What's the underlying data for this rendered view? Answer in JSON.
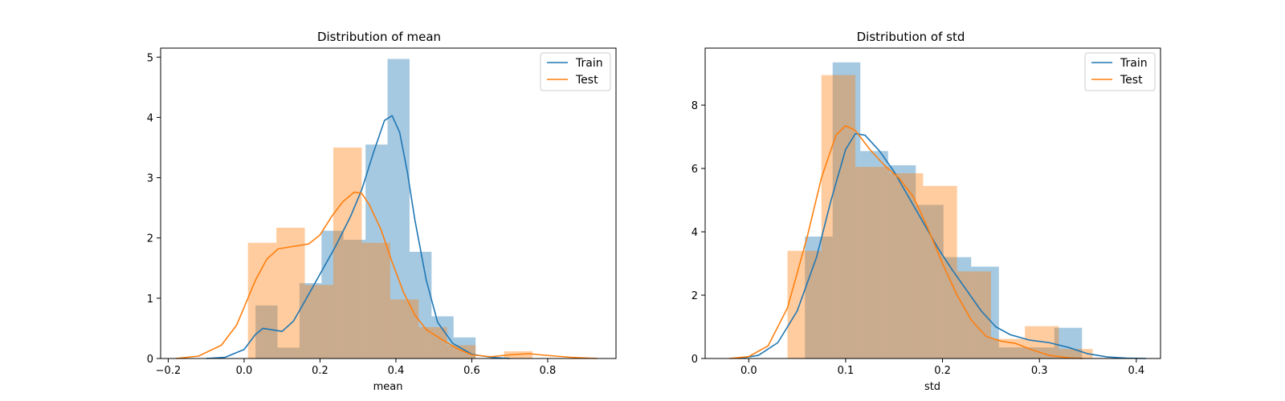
{
  "colors": {
    "train": "#1f77b4",
    "test": "#ff7f0e"
  },
  "chart_data": [
    {
      "type": "histogram",
      "title": "Distribution of mean",
      "xlabel": "mean",
      "ylabel": "",
      "xlim": [
        -0.22,
        0.98
      ],
      "ylim": [
        0,
        5.15
      ],
      "xticks": [
        -0.2,
        0.0,
        0.2,
        0.4,
        0.6,
        0.8
      ],
      "xtick_labels": [
        "−0.2",
        "0.0",
        "0.2",
        "0.4",
        "0.6",
        "0.8"
      ],
      "yticks": [
        0,
        1,
        2,
        3,
        4,
        5
      ],
      "ytick_labels": [
        "0",
        "1",
        "2",
        "3",
        "4",
        "5"
      ],
      "legend": {
        "position": "top-right",
        "entries": [
          "Train",
          "Test"
        ]
      },
      "series": [
        {
          "name": "Train",
          "color": "#1f77b4",
          "bins": [
            {
              "x0": 0.03,
              "x1": 0.088,
              "y": 0.88
            },
            {
              "x0": 0.088,
              "x1": 0.146,
              "y": 0.18
            },
            {
              "x0": 0.146,
              "x1": 0.204,
              "y": 1.25
            },
            {
              "x0": 0.204,
              "x1": 0.262,
              "y": 2.12
            },
            {
              "x0": 0.262,
              "x1": 0.32,
              "y": 1.97
            },
            {
              "x0": 0.32,
              "x1": 0.378,
              "y": 3.55
            },
            {
              "x0": 0.378,
              "x1": 0.436,
              "y": 4.97
            },
            {
              "x0": 0.436,
              "x1": 0.494,
              "y": 1.77
            },
            {
              "x0": 0.494,
              "x1": 0.552,
              "y": 0.7
            },
            {
              "x0": 0.552,
              "x1": 0.61,
              "y": 0.35
            }
          ],
          "kde": [
            [
              -0.1,
              0.0
            ],
            [
              -0.05,
              0.02
            ],
            [
              0.0,
              0.15
            ],
            [
              0.03,
              0.4
            ],
            [
              0.05,
              0.5
            ],
            [
              0.08,
              0.47
            ],
            [
              0.1,
              0.45
            ],
            [
              0.13,
              0.62
            ],
            [
              0.16,
              0.95
            ],
            [
              0.2,
              1.4
            ],
            [
              0.24,
              1.85
            ],
            [
              0.28,
              2.35
            ],
            [
              0.31,
              2.8
            ],
            [
              0.34,
              3.4
            ],
            [
              0.37,
              3.95
            ],
            [
              0.39,
              4.03
            ],
            [
              0.41,
              3.75
            ],
            [
              0.43,
              3.1
            ],
            [
              0.45,
              2.3
            ],
            [
              0.48,
              1.3
            ],
            [
              0.51,
              0.6
            ],
            [
              0.55,
              0.25
            ],
            [
              0.6,
              0.07
            ],
            [
              0.65,
              0.02
            ],
            [
              0.7,
              0.0
            ]
          ]
        },
        {
          "name": "Test",
          "color": "#ff7f0e",
          "bins": [
            {
              "x0": 0.01,
              "x1": 0.085,
              "y": 1.92
            },
            {
              "x0": 0.085,
              "x1": 0.16,
              "y": 2.17
            },
            {
              "x0": 0.16,
              "x1": 0.235,
              "y": 1.22
            },
            {
              "x0": 0.235,
              "x1": 0.31,
              "y": 3.5
            },
            {
              "x0": 0.31,
              "x1": 0.385,
              "y": 1.92
            },
            {
              "x0": 0.385,
              "x1": 0.46,
              "y": 0.98
            },
            {
              "x0": 0.46,
              "x1": 0.535,
              "y": 0.52
            },
            {
              "x0": 0.535,
              "x1": 0.61,
              "y": 0.22
            },
            {
              "x0": 0.61,
              "x1": 0.685,
              "y": 0.0
            },
            {
              "x0": 0.685,
              "x1": 0.76,
              "y": 0.12
            }
          ],
          "kde": [
            [
              -0.18,
              0.0
            ],
            [
              -0.12,
              0.04
            ],
            [
              -0.06,
              0.22
            ],
            [
              -0.02,
              0.55
            ],
            [
              0.0,
              0.85
            ],
            [
              0.03,
              1.3
            ],
            [
              0.06,
              1.65
            ],
            [
              0.09,
              1.82
            ],
            [
              0.13,
              1.86
            ],
            [
              0.17,
              1.9
            ],
            [
              0.2,
              2.05
            ],
            [
              0.23,
              2.35
            ],
            [
              0.26,
              2.6
            ],
            [
              0.29,
              2.76
            ],
            [
              0.31,
              2.74
            ],
            [
              0.33,
              2.55
            ],
            [
              0.36,
              2.15
            ],
            [
              0.39,
              1.6
            ],
            [
              0.42,
              1.1
            ],
            [
              0.45,
              0.72
            ],
            [
              0.48,
              0.48
            ],
            [
              0.52,
              0.32
            ],
            [
              0.56,
              0.17
            ],
            [
              0.6,
              0.06
            ],
            [
              0.65,
              0.03
            ],
            [
              0.7,
              0.06
            ],
            [
              0.75,
              0.08
            ],
            [
              0.8,
              0.05
            ],
            [
              0.86,
              0.02
            ],
            [
              0.93,
              0.0
            ]
          ]
        }
      ]
    },
    {
      "type": "histogram",
      "title": "Distribution of std",
      "xlabel": "std",
      "ylabel": "",
      "xlim": [
        -0.045,
        0.425
      ],
      "ylim": [
        0,
        9.8
      ],
      "xticks": [
        0.0,
        0.1,
        0.2,
        0.3,
        0.4
      ],
      "xtick_labels": [
        "0.0",
        "0.1",
        "0.2",
        "0.3",
        "0.4"
      ],
      "yticks": [
        0,
        2,
        4,
        6,
        8
      ],
      "ytick_labels": [
        "0",
        "2",
        "4",
        "6",
        "8"
      ],
      "legend": {
        "position": "top-right",
        "entries": [
          "Train",
          "Test"
        ]
      },
      "series": [
        {
          "name": "Train",
          "color": "#1f77b4",
          "bins": [
            {
              "x0": 0.058,
              "x1": 0.0866,
              "y": 3.85
            },
            {
              "x0": 0.0866,
              "x1": 0.1152,
              "y": 9.35
            },
            {
              "x0": 0.1152,
              "x1": 0.1438,
              "y": 6.55
            },
            {
              "x0": 0.1438,
              "x1": 0.1724,
              "y": 6.1
            },
            {
              "x0": 0.1724,
              "x1": 0.201,
              "y": 4.85
            },
            {
              "x0": 0.201,
              "x1": 0.2296,
              "y": 3.2
            },
            {
              "x0": 0.2296,
              "x1": 0.2582,
              "y": 2.9
            },
            {
              "x0": 0.2582,
              "x1": 0.2868,
              "y": 0.35
            },
            {
              "x0": 0.2868,
              "x1": 0.3154,
              "y": 0.35
            },
            {
              "x0": 0.3154,
              "x1": 0.344,
              "y": 0.97
            }
          ],
          "kde": [
            [
              -0.01,
              0.0
            ],
            [
              0.01,
              0.1
            ],
            [
              0.03,
              0.5
            ],
            [
              0.05,
              1.5
            ],
            [
              0.07,
              3.2
            ],
            [
              0.085,
              5.0
            ],
            [
              0.1,
              6.6
            ],
            [
              0.11,
              7.1
            ],
            [
              0.12,
              7.05
            ],
            [
              0.135,
              6.55
            ],
            [
              0.15,
              5.9
            ],
            [
              0.165,
              5.1
            ],
            [
              0.18,
              4.3
            ],
            [
              0.195,
              3.5
            ],
            [
              0.21,
              2.8
            ],
            [
              0.225,
              2.15
            ],
            [
              0.24,
              1.5
            ],
            [
              0.255,
              1.0
            ],
            [
              0.27,
              0.75
            ],
            [
              0.29,
              0.58
            ],
            [
              0.31,
              0.5
            ],
            [
              0.33,
              0.35
            ],
            [
              0.35,
              0.15
            ],
            [
              0.37,
              0.05
            ],
            [
              0.39,
              0.01
            ],
            [
              0.41,
              0.0
            ]
          ]
        },
        {
          "name": "Test",
          "color": "#ff7f0e",
          "bins": [
            {
              "x0": 0.04,
              "x1": 0.075,
              "y": 3.4
            },
            {
              "x0": 0.075,
              "x1": 0.11,
              "y": 8.95
            },
            {
              "x0": 0.11,
              "x1": 0.145,
              "y": 6.05
            },
            {
              "x0": 0.145,
              "x1": 0.18,
              "y": 5.85
            },
            {
              "x0": 0.18,
              "x1": 0.215,
              "y": 5.45
            },
            {
              "x0": 0.215,
              "x1": 0.25,
              "y": 2.75
            },
            {
              "x0": 0.25,
              "x1": 0.285,
              "y": 0.62
            },
            {
              "x0": 0.285,
              "x1": 0.32,
              "y": 1.02
            },
            {
              "x0": 0.32,
              "x1": 0.355,
              "y": 0.3
            },
            {
              "x0": 0.355,
              "x1": 0.39,
              "y": 0.02
            }
          ],
          "kde": [
            [
              -0.02,
              0.0
            ],
            [
              0.0,
              0.06
            ],
            [
              0.02,
              0.4
            ],
            [
              0.04,
              1.6
            ],
            [
              0.06,
              3.8
            ],
            [
              0.075,
              5.7
            ],
            [
              0.09,
              7.05
            ],
            [
              0.1,
              7.35
            ],
            [
              0.11,
              7.2
            ],
            [
              0.125,
              6.6
            ],
            [
              0.14,
              6.1
            ],
            [
              0.155,
              5.7
            ],
            [
              0.17,
              5.1
            ],
            [
              0.185,
              4.1
            ],
            [
              0.2,
              3.0
            ],
            [
              0.215,
              2.0
            ],
            [
              0.23,
              1.2
            ],
            [
              0.245,
              0.7
            ],
            [
              0.26,
              0.55
            ],
            [
              0.275,
              0.48
            ],
            [
              0.29,
              0.3
            ],
            [
              0.31,
              0.1
            ],
            [
              0.33,
              0.02
            ],
            [
              0.345,
              0.0
            ]
          ]
        }
      ]
    }
  ]
}
